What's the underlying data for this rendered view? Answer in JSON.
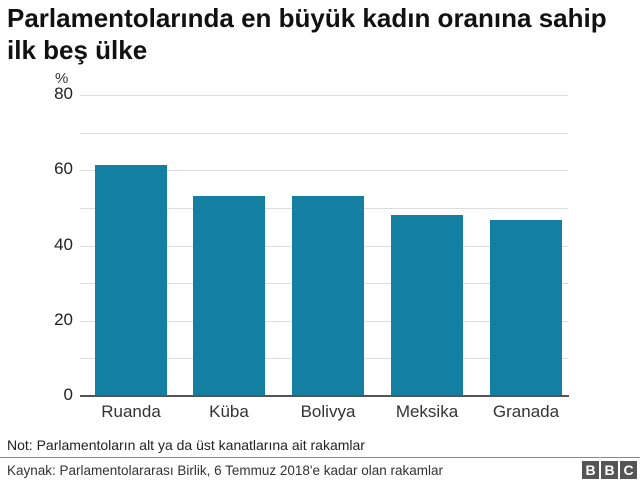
{
  "title": "Parlamentolarında en büyük kadın oranına sahip ilk beş ülke",
  "unit_label": "%",
  "note": "Not: Parlamentoların alt ya da üst kanatlarına ait rakamlar",
  "source": "Kaynak: Parlamentolararası Birlik, 6 Temmuz 2018'e kadar olan rakamlar",
  "logo": [
    "B",
    "B",
    "C"
  ],
  "colors": {
    "bar": "#1380a1",
    "grid": "#dcdcdc",
    "baseline": "#555555"
  },
  "y_ticks": [
    "80",
    "60",
    "40",
    "20",
    "0"
  ],
  "chart_data": {
    "type": "bar",
    "title": "Parlamentolarında en büyük kadın oranına sahip ilk beş ülke",
    "xlabel": "",
    "ylabel": "%",
    "categories": [
      "Ruanda",
      "Küba",
      "Bolivya",
      "Meksika",
      "Granada"
    ],
    "values": [
      61.3,
      53.2,
      53.1,
      48.2,
      46.7
    ],
    "ylim": [
      0,
      80
    ],
    "yticks": [
      0,
      20,
      40,
      60,
      80
    ],
    "grid": true,
    "legend": null
  }
}
